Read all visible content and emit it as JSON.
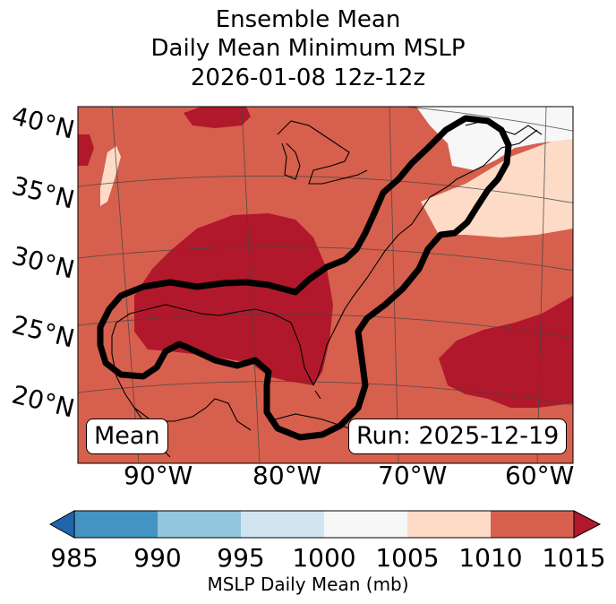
{
  "title": {
    "line1": "Ensemble Mean",
    "line2": "Daily Mean Minimum MSLP",
    "line3": "2026-01-08 12z-12z"
  },
  "map": {
    "lat_labels": [
      "40°N",
      "35°N",
      "30°N",
      "25°N",
      "20°N"
    ],
    "lon_labels": [
      "90°W",
      "80°W",
      "70°W",
      "60°W"
    ],
    "mean_label": "Mean",
    "run_label": "Run: 2025-12-19",
    "field_colors": {
      "1010-1015": "#d6604d",
      "above-1015": "#b2182b",
      "1005-1010": "#fddbc7",
      "1000-1005": "#f7f7f7"
    }
  },
  "colorbar": {
    "ticks": [
      "985",
      "990",
      "995",
      "1000",
      "1005",
      "1010",
      "1015"
    ],
    "colors": [
      "#2166ac",
      "#4393c3",
      "#92c5de",
      "#d1e5f0",
      "#f7f7f7",
      "#fddbc7",
      "#d6604d",
      "#b2182b"
    ],
    "label": "MSLP Daily Mean (mb)"
  }
}
